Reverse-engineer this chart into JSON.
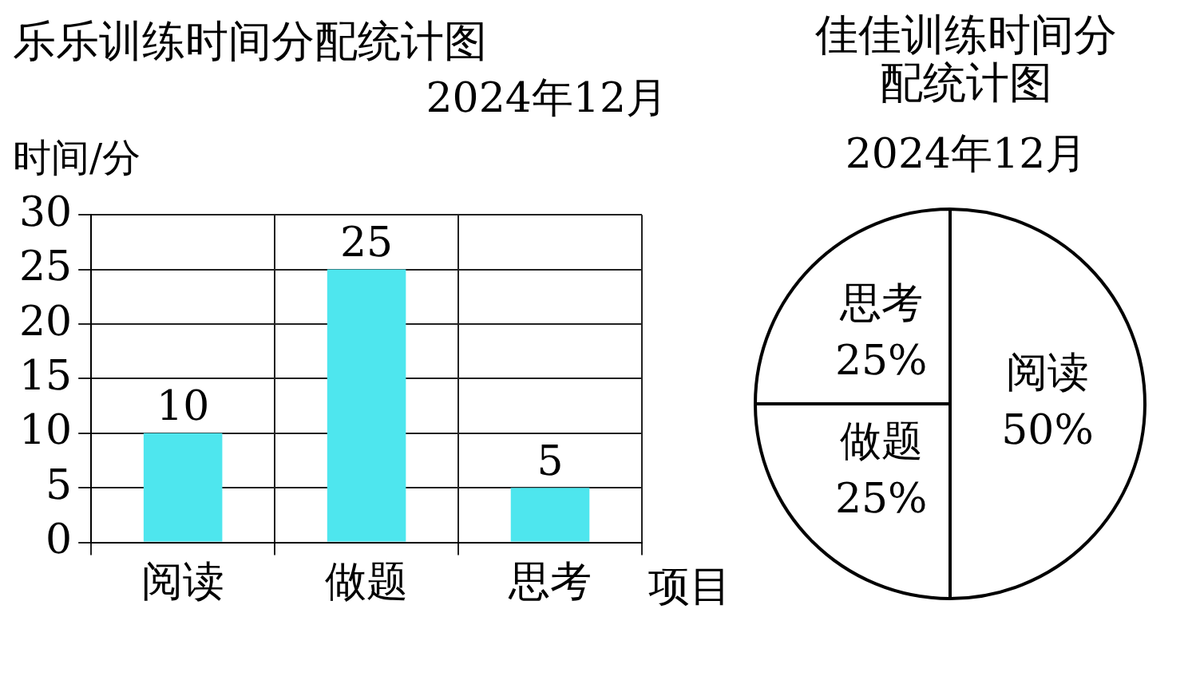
{
  "chart_data": [
    {
      "type": "bar",
      "title": "乐乐训练时间分配统计图",
      "subtitle": "2024年12月",
      "ylabel": "时间/分",
      "xlabel": "项目",
      "categories": [
        "阅读",
        "做题",
        "思考"
      ],
      "values": [
        10,
        25,
        5
      ],
      "color": "#4ee6ee",
      "ylim": [
        0,
        30
      ],
      "yticks": [
        0,
        5,
        10,
        15,
        20,
        25,
        30
      ],
      "grid": true,
      "data_labels": true
    },
    {
      "type": "pie",
      "title": "佳佳训练时间分配统计图",
      "subtitle": "2024年12月",
      "categories": [
        "阅读",
        "做题",
        "思考"
      ],
      "values": [
        50,
        25,
        25
      ],
      "colors": [
        "#ffffff",
        "#ffffff",
        "#ffffff"
      ],
      "value_labels": [
        "50%",
        "25%",
        "25%"
      ]
    }
  ]
}
